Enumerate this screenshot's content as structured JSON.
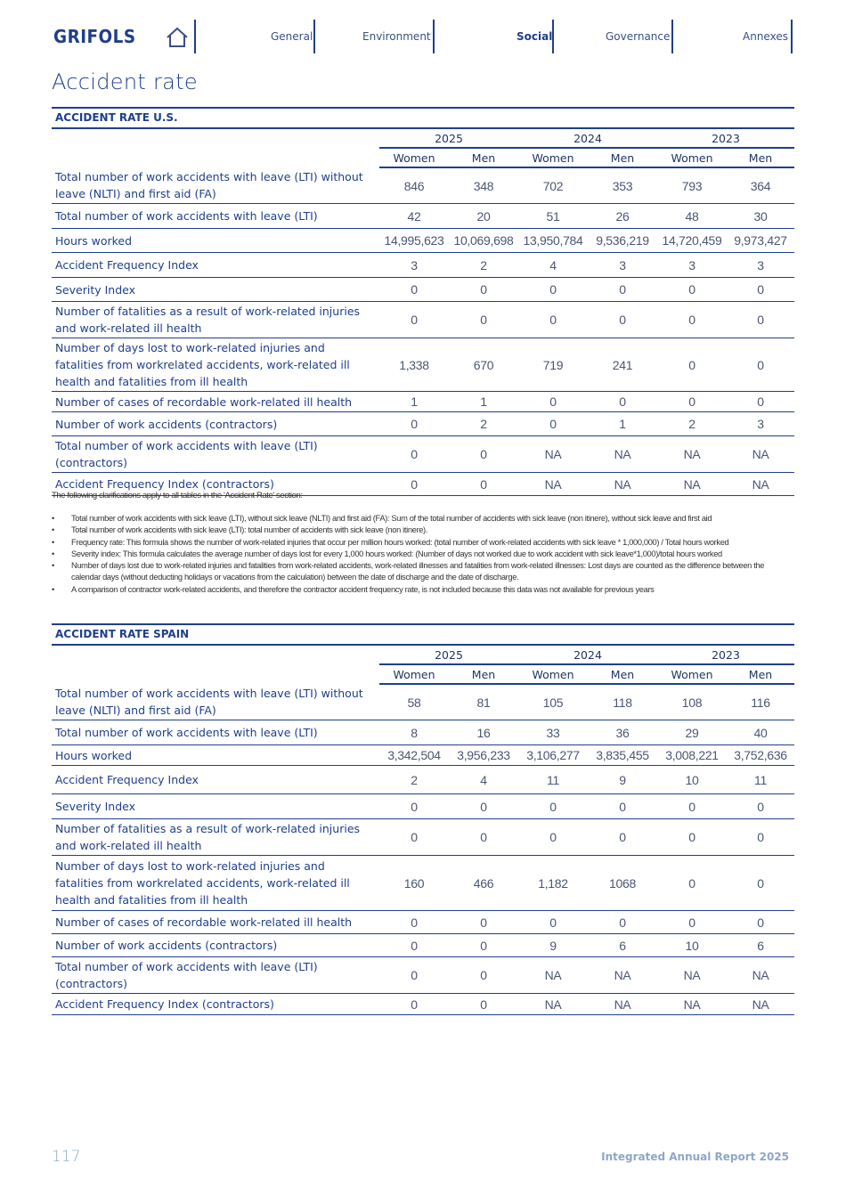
{
  "header": {
    "logo": "GRIFOLS",
    "nav": [
      "General",
      "Environment",
      "Social",
      "Governance",
      "Annexes"
    ],
    "active_nav": "Social"
  },
  "page_title": "Accident rate",
  "tables": [
    {
      "title": "ACCIDENT RATE U.S.",
      "years": [
        "2025",
        "2024",
        "2023"
      ],
      "genders": [
        "Women",
        "Men",
        "Women",
        "Men",
        "Women",
        "Men"
      ],
      "rows": [
        {
          "label": "Total number of work accidents with leave (LTI) without leave (NLTI) and first aid (FA)",
          "values": [
            "846",
            "348",
            "702",
            "353",
            "793",
            "364"
          ]
        },
        {
          "label": "Total number of work accidents with leave (LTI)",
          "values": [
            "42",
            "20",
            "51",
            "26",
            "48",
            "30"
          ]
        },
        {
          "label": "Hours worked",
          "values": [
            "14,995,623",
            "10,069,698",
            "13,950,784",
            "9,536,219",
            "14,720,459",
            "9,973,427"
          ]
        },
        {
          "label": "Accident Frequency Index",
          "values": [
            "3",
            "2",
            "4",
            "3",
            "3",
            "3"
          ]
        },
        {
          "label": "Severity Index",
          "values": [
            "0",
            "0",
            "0",
            "0",
            "0",
            "0"
          ]
        },
        {
          "label": "Number of fatalities as a result of work-related injuries and work-related ill health",
          "values": [
            "0",
            "0",
            "0",
            "0",
            "0",
            "0"
          ]
        },
        {
          "label": "Number of days lost to work-related injuries and fatalities from workrelated accidents, work-related ill health and fatalities from ill health",
          "values": [
            "1,338",
            "670",
            "719",
            "241",
            "0",
            "0"
          ]
        },
        {
          "label": "Number of cases of recordable work-related ill health",
          "values": [
            "1",
            "1",
            "0",
            "0",
            "0",
            "0"
          ]
        },
        {
          "label": "Number of work accidents (contractors)",
          "values": [
            "0",
            "2",
            "0",
            "1",
            "2",
            "3"
          ]
        },
        {
          "label": "Total number of work accidents with leave (LTI) (contractors)",
          "values": [
            "0",
            "0",
            "NA",
            "NA",
            "NA",
            "NA"
          ]
        },
        {
          "label": "Accident Frequency Index (contractors)",
          "values": [
            "0",
            "0",
            "NA",
            "NA",
            "NA",
            "NA"
          ]
        }
      ]
    },
    {
      "title": "ACCIDENT RATE SPAIN",
      "years": [
        "2025",
        "2024",
        "2023"
      ],
      "genders": [
        "Women",
        "Men",
        "Women",
        "Men",
        "Women",
        "Men"
      ],
      "rows": [
        {
          "label": "Total number of work accidents with leave (LTI) without leave (NLTI) and first aid (FA)",
          "values": [
            "58",
            "81",
            "105",
            "118",
            "108",
            "116"
          ]
        },
        {
          "label": "Total number of work accidents with leave (LTI)",
          "values": [
            "8",
            "16",
            "33",
            "36",
            "29",
            "40"
          ]
        },
        {
          "label": "Hours worked",
          "values": [
            "3,342,504",
            "3,956,233",
            "3,106,277",
            "3,835,455",
            "3,008,221",
            "3,752,636"
          ]
        },
        {
          "label": "Accident Frequency Index",
          "values": [
            "2",
            "4",
            "11",
            "9",
            "10",
            "11"
          ]
        },
        {
          "label": "Severity Index",
          "values": [
            "0",
            "0",
            "0",
            "0",
            "0",
            "0"
          ]
        },
        {
          "label": "Number of fatalities as a result of work-related injuries and work-related ill health",
          "values": [
            "0",
            "0",
            "0",
            "0",
            "0",
            "0"
          ]
        },
        {
          "label": "Number of days lost to work-related injuries and fatalities from workrelated accidents, work-related ill health and fatalities from ill health",
          "values": [
            "160",
            "466",
            "1,182",
            "1068",
            "0",
            "0"
          ]
        },
        {
          "label": "Number of cases of recordable work-related ill health",
          "values": [
            "0",
            "0",
            "0",
            "0",
            "0",
            "0"
          ]
        },
        {
          "label": "Number of work accidents (contractors)",
          "values": [
            "0",
            "0",
            "9",
            "6",
            "10",
            "6"
          ]
        },
        {
          "label": "Total number of work accidents with leave (LTI) (contractors)",
          "values": [
            "0",
            "0",
            "NA",
            "NA",
            "NA",
            "NA"
          ]
        },
        {
          "label": "Accident Frequency Index (contractors)",
          "values": [
            "0",
            "0",
            "NA",
            "NA",
            "NA",
            "NA"
          ]
        }
      ]
    }
  ],
  "notes": {
    "intro": "The following clarifications apply to all tables in the 'Accident Rate' section:",
    "items": [
      "Total number of work accidents with sick leave (LTI), without sick leave (NLTI) and first aid (FA): Sum of the total number of accidents with sick leave (non itinere), without sick leave and first aid",
      "Total number of work accidents with sick leave (LTI): total number of accidents with sick leave (non itinere).",
      "Frequency rate: This formula shows the number of work-related injuries that occur per million hours worked: (total number of work-related accidents with sick leave * 1,000,000) / Total hours worked",
      "Severity index: This formula calculates the average number of days lost for every 1,000 hours worked: (Number of days not worked due to work accident with sick leave*1,000)/total hours worked",
      "Number of days lost due to work-related injuries and fatalities from work-related accidents, work-related illnesses and fatalities from work-related illnesses: Lost days are counted as the difference between the calendar days (without deducting holidays or vacations from the calculation) between the date of discharge and the date of discharge.",
      "A comparison of contractor work-related accidents, and therefore the contractor accident frequency rate, is not included because this data was not available for previous years"
    ]
  },
  "footer": {
    "page_number": "117",
    "report_title": "Integrated Annual Report 2025"
  }
}
